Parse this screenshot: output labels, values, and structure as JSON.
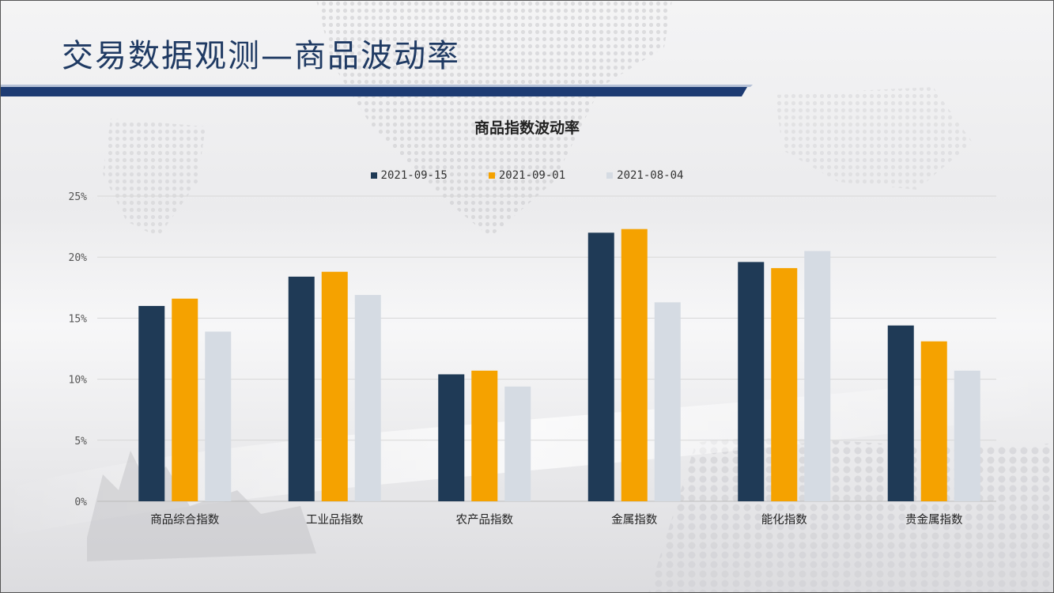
{
  "slide": {
    "title": "交易数据观测—商品波动率",
    "colors": {
      "title": "#1f3a63",
      "band": "#1d3b73"
    }
  },
  "chart_data": {
    "type": "bar",
    "title": "商品指数波动率",
    "categories": [
      "商品综合指数",
      "工业品指数",
      "农产品指数",
      "金属指数",
      "能化指数",
      "贵金属指数"
    ],
    "series": [
      {
        "name": "2021-09-15",
        "color": "#1f3a56",
        "values": [
          16.0,
          18.4,
          10.4,
          22.0,
          19.6,
          14.4
        ]
      },
      {
        "name": "2021-09-01",
        "color": "#f5a200",
        "values": [
          16.6,
          18.8,
          10.7,
          22.3,
          19.1,
          13.1
        ]
      },
      {
        "name": "2021-08-04",
        "color": "#d5dbe3",
        "values": [
          13.9,
          16.9,
          9.4,
          16.3,
          20.5,
          10.7
        ]
      }
    ],
    "y_ticks": [
      "0%",
      "5%",
      "10%",
      "15%",
      "20%",
      "25%"
    ],
    "ylim": [
      0,
      25
    ],
    "ystep": 5,
    "grid": true,
    "legend_position": "top-center",
    "xlabel": "",
    "ylabel": ""
  }
}
